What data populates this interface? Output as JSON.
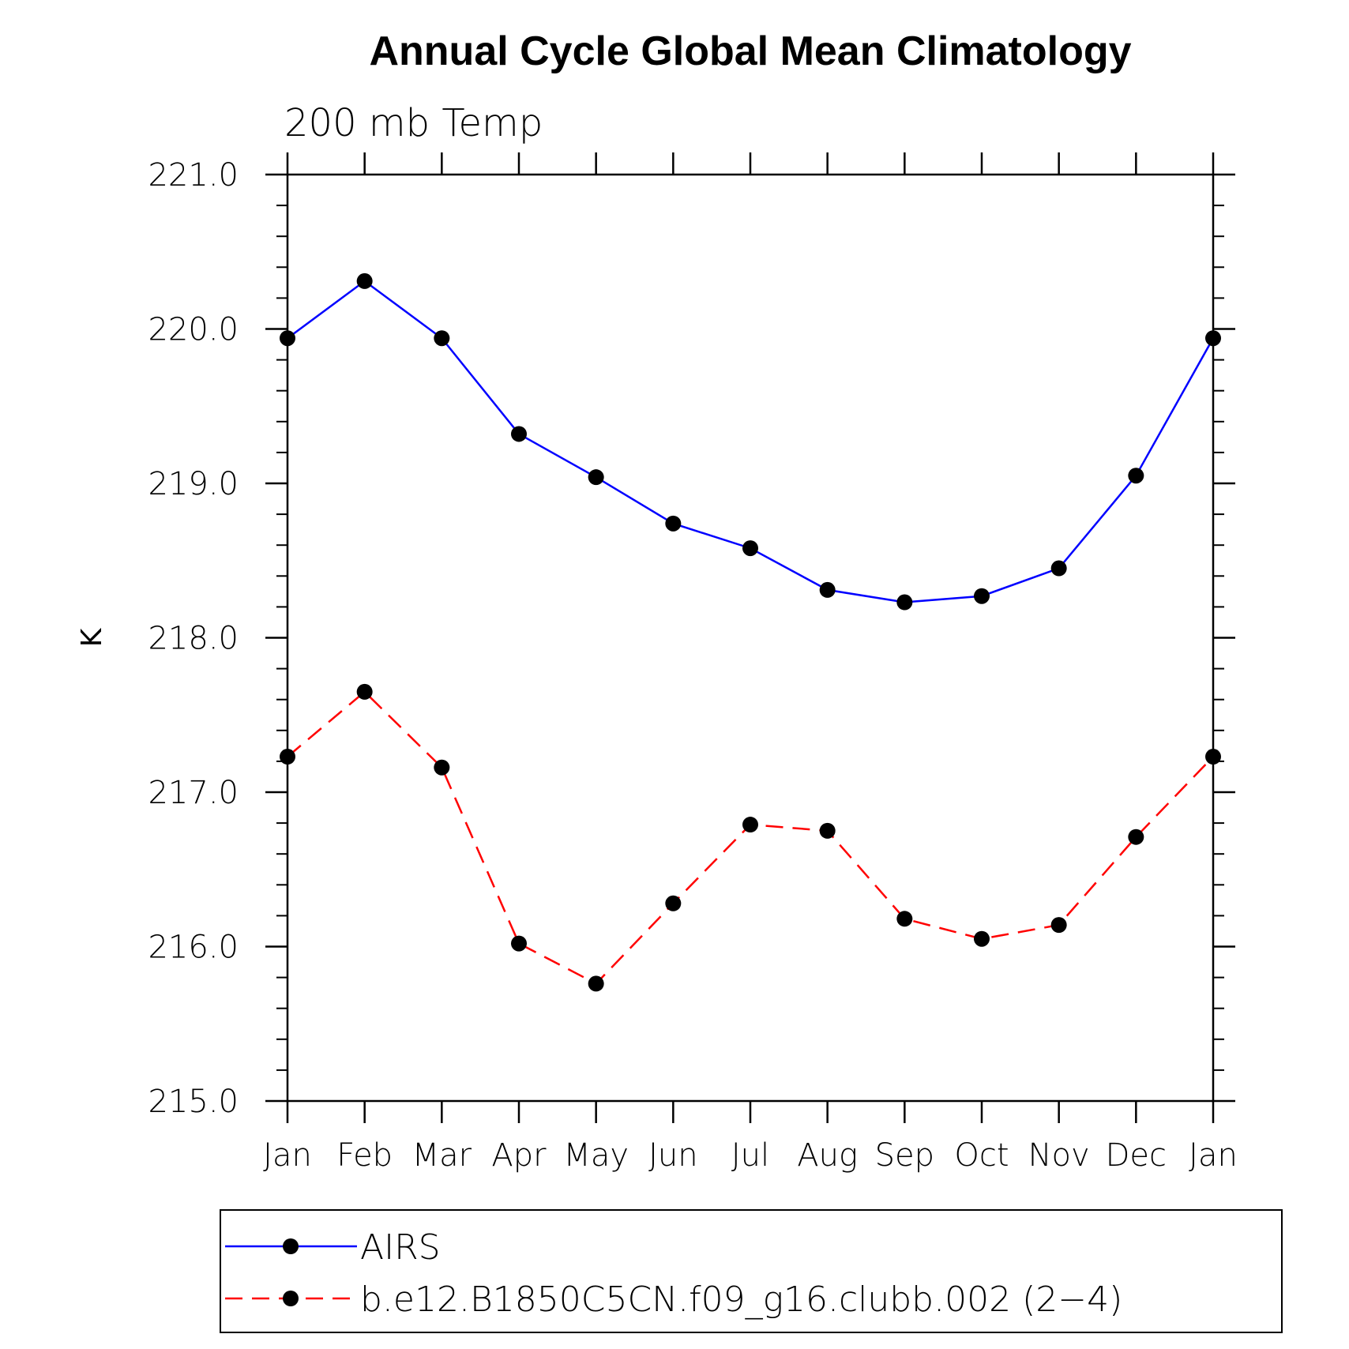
{
  "chart_data": {
    "type": "line",
    "title": "Annual Cycle Global Mean Climatology",
    "subtitle": "200 mb Temp",
    "xlabel": "",
    "ylabel": "K",
    "categories": [
      "Jan",
      "Feb",
      "Mar",
      "Apr",
      "May",
      "Jun",
      "Jul",
      "Aug",
      "Sep",
      "Oct",
      "Nov",
      "Dec",
      "Jan"
    ],
    "ylim": [
      215.0,
      221.0
    ],
    "yticks": [
      "215.0",
      "216.0",
      "217.0",
      "218.0",
      "219.0",
      "220.0",
      "221.0"
    ],
    "legend_position": "bottom",
    "series": [
      {
        "name": "AIRS",
        "color": "#0000ff",
        "dash": "solid",
        "values": [
          219.94,
          220.31,
          219.94,
          219.32,
          219.04,
          218.74,
          218.58,
          218.31,
          218.23,
          218.27,
          218.45,
          219.05,
          219.94
        ]
      },
      {
        "name": "b.e12.B1850C5CN.f09_g16.clubb.002 (2−4)",
        "color": "#ff0000",
        "dash": "dashed",
        "values": [
          217.23,
          217.65,
          217.16,
          216.02,
          215.76,
          216.28,
          216.79,
          216.75,
          216.18,
          216.05,
          216.14,
          216.71,
          217.23
        ]
      }
    ]
  }
}
